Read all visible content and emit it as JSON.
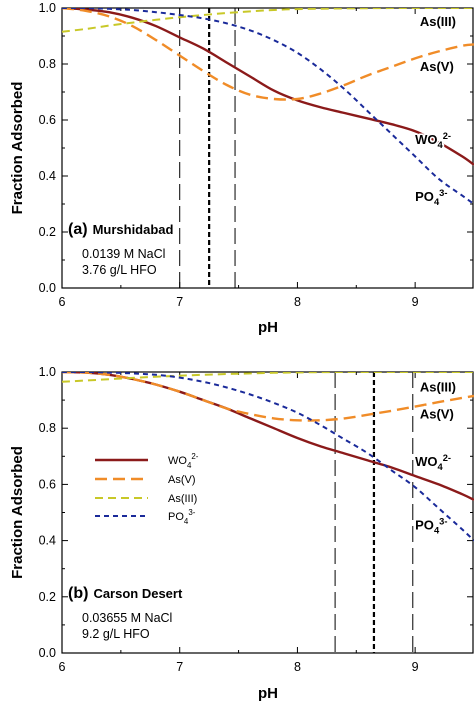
{
  "chart_data": [
    {
      "type": "line",
      "panel_tag": "(a)",
      "panel_name": "Murshidabad",
      "conditions": [
        "0.0139 M NaCl",
        "3.76 g/L HFO"
      ],
      "xlabel": "pH",
      "ylabel": "Fraction Adsorbed",
      "xlim": [
        6,
        9.5
      ],
      "ylim": [
        0,
        1
      ],
      "x_ticks": [
        6,
        7,
        8,
        9
      ],
      "y_ticks": [
        0.0,
        0.2,
        0.4,
        0.6,
        0.8,
        1.0
      ],
      "y_tick_labels": [
        "0.0",
        "0.2",
        "0.4",
        "0.6",
        "0.8",
        "1.0"
      ],
      "legend": false,
      "vlines": [
        {
          "x": 7.0,
          "style": "long-dash"
        },
        {
          "x": 7.25,
          "style": "bold-short-dash"
        },
        {
          "x": 7.47,
          "style": "long-dash"
        }
      ],
      "series": [
        {
          "name": "WO4 2-",
          "label_main": "WO",
          "label_sub": "4",
          "label_sup": "2-",
          "color": "#8b1a1a",
          "dash": "solid",
          "x": [
            6.0,
            6.2,
            6.4,
            6.6,
            6.8,
            7.0,
            7.2,
            7.4,
            7.6,
            7.8,
            8.0,
            8.2,
            8.4,
            8.6,
            8.8,
            9.0,
            9.2,
            9.4,
            9.5
          ],
          "y": [
            1.0,
            0.995,
            0.985,
            0.965,
            0.935,
            0.895,
            0.855,
            0.805,
            0.755,
            0.705,
            0.67,
            0.645,
            0.625,
            0.605,
            0.585,
            0.56,
            0.52,
            0.47,
            0.44
          ]
        },
        {
          "name": "As(V)",
          "label_main": "As(V)",
          "color": "#f08c28",
          "dash": "long",
          "x": [
            6.0,
            6.2,
            6.4,
            6.6,
            6.8,
            7.0,
            7.2,
            7.4,
            7.6,
            7.8,
            8.0,
            8.2,
            8.4,
            8.6,
            8.8,
            9.0,
            9.2,
            9.4,
            9.5
          ],
          "y": [
            1.0,
            0.99,
            0.97,
            0.935,
            0.885,
            0.83,
            0.775,
            0.725,
            0.69,
            0.675,
            0.675,
            0.695,
            0.725,
            0.76,
            0.79,
            0.82,
            0.845,
            0.865,
            0.87
          ]
        },
        {
          "name": "As(III)",
          "label_main": "As(III)",
          "color": "#c8c828",
          "dash": "medium",
          "x": [
            6.0,
            6.2,
            6.4,
            6.6,
            6.8,
            7.0,
            7.2,
            7.4,
            7.6,
            7.8,
            8.0,
            8.5,
            9.0,
            9.5
          ],
          "y": [
            0.915,
            0.925,
            0.937,
            0.948,
            0.958,
            0.967,
            0.975,
            0.982,
            0.988,
            0.993,
            0.996,
            0.999,
            1.0,
            1.0
          ]
        },
        {
          "name": "PO4 3-",
          "label_main": "PO",
          "label_sub": "4",
          "label_sup": "3-",
          "color": "#1a2a9a",
          "dash": "short",
          "x": [
            6.0,
            6.2,
            6.4,
            6.6,
            6.8,
            7.0,
            7.2,
            7.4,
            7.6,
            7.8,
            8.0,
            8.2,
            8.4,
            8.6,
            8.8,
            9.0,
            9.2,
            9.4,
            9.5
          ],
          "y": [
            1.0,
            1.0,
            0.997,
            0.993,
            0.985,
            0.975,
            0.963,
            0.945,
            0.92,
            0.885,
            0.84,
            0.78,
            0.71,
            0.63,
            0.55,
            0.47,
            0.39,
            0.33,
            0.3
          ]
        }
      ]
    },
    {
      "type": "line",
      "panel_tag": "(b)",
      "panel_name": "Carson Desert",
      "conditions": [
        "0.03655 M NaCl",
        "9.2 g/L HFO"
      ],
      "xlabel": "pH",
      "ylabel": "Fraction Adsorbed",
      "xlim": [
        6,
        9.5
      ],
      "ylim": [
        0,
        1
      ],
      "x_ticks": [
        6,
        7,
        8,
        9
      ],
      "y_ticks": [
        0.0,
        0.2,
        0.4,
        0.6,
        0.8,
        1.0
      ],
      "y_tick_labels": [
        "0.0",
        "0.2",
        "0.4",
        "0.6",
        "0.8",
        "1.0"
      ],
      "legend": true,
      "legend_placement": "center-left",
      "vlines": [
        {
          "x": 8.32,
          "style": "long-dash"
        },
        {
          "x": 8.65,
          "style": "bold-short-dash"
        },
        {
          "x": 8.98,
          "style": "long-dash"
        }
      ],
      "series": [
        {
          "name": "WO4 2-",
          "label_main": "WO",
          "label_sub": "4",
          "label_sup": "2-",
          "color": "#8b1a1a",
          "dash": "solid",
          "x": [
            6.0,
            6.2,
            6.4,
            6.6,
            6.8,
            7.0,
            7.2,
            7.4,
            7.6,
            7.8,
            8.0,
            8.2,
            8.4,
            8.6,
            8.8,
            9.0,
            9.2,
            9.4,
            9.5
          ],
          "y": [
            1.0,
            0.998,
            0.99,
            0.975,
            0.955,
            0.93,
            0.9,
            0.87,
            0.835,
            0.8,
            0.765,
            0.735,
            0.71,
            0.685,
            0.66,
            0.63,
            0.6,
            0.565,
            0.545
          ]
        },
        {
          "name": "As(V)",
          "label_main": "As(V)",
          "color": "#f08c28",
          "dash": "long",
          "x": [
            6.0,
            6.2,
            6.4,
            6.6,
            6.8,
            7.0,
            7.2,
            7.4,
            7.6,
            7.8,
            8.0,
            8.2,
            8.4,
            8.6,
            8.8,
            9.0,
            9.2,
            9.4,
            9.5
          ],
          "y": [
            1.0,
            0.998,
            0.99,
            0.975,
            0.955,
            0.93,
            0.9,
            0.87,
            0.85,
            0.835,
            0.828,
            0.828,
            0.835,
            0.848,
            0.862,
            0.877,
            0.893,
            0.908,
            0.915
          ]
        },
        {
          "name": "As(III)",
          "label_main": "As(III)",
          "color": "#c8c828",
          "dash": "medium",
          "x": [
            6.0,
            6.3,
            6.6,
            6.9,
            7.2,
            7.5,
            7.8,
            8.1,
            8.5,
            9.0,
            9.5
          ],
          "y": [
            0.965,
            0.972,
            0.979,
            0.985,
            0.99,
            0.994,
            0.997,
            0.999,
            1.0,
            1.0,
            1.0
          ]
        },
        {
          "name": "PO4 3-",
          "label_main": "PO",
          "label_sub": "4",
          "label_sup": "3-",
          "color": "#1a2a9a",
          "dash": "short",
          "x": [
            6.0,
            6.2,
            6.4,
            6.6,
            6.8,
            7.0,
            7.2,
            7.4,
            7.6,
            7.8,
            8.0,
            8.2,
            8.4,
            8.6,
            8.8,
            9.0,
            9.2,
            9.4,
            9.5
          ],
          "y": [
            1.0,
            1.0,
            0.998,
            0.995,
            0.99,
            0.98,
            0.965,
            0.945,
            0.92,
            0.89,
            0.855,
            0.81,
            0.76,
            0.71,
            0.65,
            0.59,
            0.515,
            0.44,
            0.4
          ]
        }
      ]
    }
  ]
}
